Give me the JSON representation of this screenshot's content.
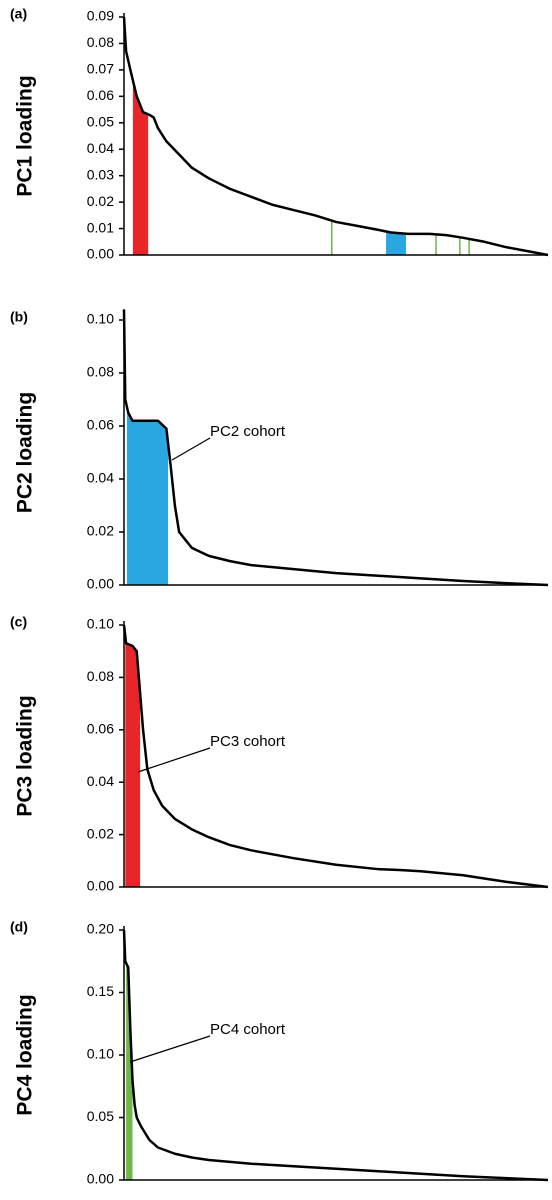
{
  "chart_data": [
    {
      "type": "line",
      "panel_label": "(a)",
      "ylabel": "PC1 loading",
      "xlim": [
        0,
        100
      ],
      "ylim": [
        0,
        0.09
      ],
      "yticks": [
        {
          "value": 0,
          "label": "0.00"
        },
        {
          "value": 0.01,
          "label": "0.01"
        },
        {
          "value": 0.02,
          "label": "0.02"
        },
        {
          "value": 0.03,
          "label": "0.03"
        },
        {
          "value": 0.04,
          "label": "0.04"
        },
        {
          "value": 0.05,
          "label": "0.05"
        },
        {
          "value": 0.06,
          "label": "0.06"
        },
        {
          "value": 0.07,
          "label": "0.07"
        },
        {
          "value": 0.08,
          "label": "0.08"
        },
        {
          "value": 0.09,
          "label": "0.09"
        }
      ],
      "x": [
        0,
        0.5,
        1.5,
        3,
        4.5,
        6,
        7,
        8,
        10,
        13,
        16,
        20,
        25,
        30,
        35,
        40,
        45,
        50,
        55,
        60,
        63,
        67,
        72,
        76,
        80,
        85,
        90,
        95,
        100
      ],
      "values": [
        0.09,
        0.077,
        0.07,
        0.06,
        0.054,
        0.053,
        0.052,
        0.048,
        0.043,
        0.038,
        0.033,
        0.029,
        0.025,
        0.022,
        0.019,
        0.017,
        0.015,
        0.0125,
        0.011,
        0.0095,
        0.0085,
        0.008,
        0.008,
        0.0075,
        0.0065,
        0.005,
        0.003,
        0.0015,
        0
      ],
      "color": "#000000",
      "highlights": [
        {
          "color": "#e8262a",
          "start": 2.1,
          "end": 5.7
        },
        {
          "color": "#2aa7e0",
          "start": 61.8,
          "end": 66.5
        },
        {
          "color": "#70b74a",
          "start": 49,
          "end": 49
        },
        {
          "color": "#70b74a",
          "start": 73.6,
          "end": 73.6
        },
        {
          "color": "#70b74a",
          "start": 79.2,
          "end": 79.2
        },
        {
          "color": "#70b74a",
          "start": 81.4,
          "end": 81.4
        }
      ]
    },
    {
      "type": "line",
      "panel_label": "(b)",
      "ylabel": "PC2 loading",
      "annotation": "PC2 cohort",
      "xlim": [
        0,
        100
      ],
      "ylim": [
        0,
        0.1
      ],
      "yticks": [
        {
          "value": 0,
          "label": "0.00"
        },
        {
          "value": 0.02,
          "label": "0.02"
        },
        {
          "value": 0.04,
          "label": "0.04"
        },
        {
          "value": 0.06,
          "label": "0.06"
        },
        {
          "value": 0.08,
          "label": "0.08"
        },
        {
          "value": 0.1,
          "label": "0.10"
        }
      ],
      "x": [
        0,
        0.3,
        1,
        2,
        5,
        8,
        10,
        11,
        12,
        13,
        14,
        16,
        20,
        25,
        30,
        40,
        50,
        60,
        70,
        80,
        90,
        100
      ],
      "values": [
        0.104,
        0.07,
        0.065,
        0.062,
        0.062,
        0.062,
        0.059,
        0.045,
        0.03,
        0.02,
        0.018,
        0.014,
        0.011,
        0.009,
        0.0075,
        0.006,
        0.0045,
        0.0035,
        0.0025,
        0.0015,
        0.0007,
        0
      ],
      "color": "#000000",
      "highlights": [
        {
          "color": "#2aa7e0",
          "start": 0.7,
          "end": 10.4
        }
      ]
    },
    {
      "type": "line",
      "panel_label": "(c)",
      "ylabel": "PC3 loading",
      "annotation": "PC3 cohort",
      "xlim": [
        0,
        100
      ],
      "ylim": [
        0,
        0.1
      ],
      "yticks": [
        {
          "value": 0,
          "label": "0.00"
        },
        {
          "value": 0.02,
          "label": "0.02"
        },
        {
          "value": 0.04,
          "label": "0.04"
        },
        {
          "value": 0.06,
          "label": "0.06"
        },
        {
          "value": 0.08,
          "label": "0.08"
        },
        {
          "value": 0.1,
          "label": "0.10"
        }
      ],
      "x": [
        0,
        0.5,
        2,
        3,
        3.5,
        4.5,
        5.5,
        7,
        9,
        12,
        16,
        20,
        25,
        30,
        40,
        50,
        60,
        65,
        70,
        80,
        90,
        100
      ],
      "values": [
        0.1,
        0.093,
        0.092,
        0.09,
        0.08,
        0.06,
        0.045,
        0.037,
        0.031,
        0.026,
        0.022,
        0.019,
        0.016,
        0.014,
        0.011,
        0.0085,
        0.0068,
        0.0065,
        0.006,
        0.0045,
        0.002,
        0
      ],
      "color": "#000000",
      "highlights": [
        {
          "color": "#e8262a",
          "start": 0.3,
          "end": 3.8
        }
      ]
    },
    {
      "type": "line",
      "panel_label": "(d)",
      "ylabel": "PC4 loading",
      "annotation": "PC4 cohort",
      "xlim": [
        0,
        100
      ],
      "ylim": [
        0,
        0.2
      ],
      "yticks": [
        {
          "value": 0,
          "label": "0.00"
        },
        {
          "value": 0.05,
          "label": "0.05"
        },
        {
          "value": 0.1,
          "label": "0.10"
        },
        {
          "value": 0.15,
          "label": "0.15"
        },
        {
          "value": 0.2,
          "label": "0.20"
        }
      ],
      "x": [
        0,
        0.3,
        1,
        1.5,
        2,
        2.5,
        3,
        4,
        6,
        8,
        12,
        16,
        20,
        30,
        40,
        50,
        60,
        70,
        80,
        90,
        100
      ],
      "values": [
        0.2,
        0.175,
        0.17,
        0.12,
        0.08,
        0.06,
        0.05,
        0.043,
        0.032,
        0.026,
        0.021,
        0.018,
        0.016,
        0.013,
        0.011,
        0.009,
        0.007,
        0.005,
        0.003,
        0.0015,
        0
      ],
      "color": "#000000",
      "highlights": [
        {
          "color": "#70b74a",
          "start": 0.5,
          "end": 2
        }
      ]
    }
  ]
}
